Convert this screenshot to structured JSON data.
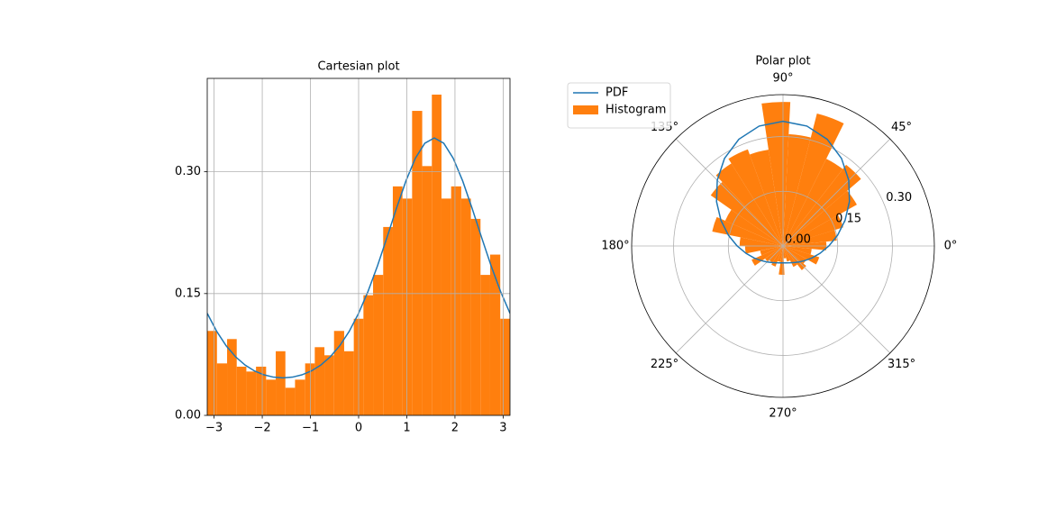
{
  "chart_data": [
    {
      "type": "histogram",
      "title": "Cartesian plot",
      "bins": [
        -3.14,
        -2.94,
        -2.73,
        -2.53,
        -2.33,
        -2.13,
        -1.92,
        -1.72,
        -1.52,
        -1.32,
        -1.11,
        -0.91,
        -0.71,
        -0.51,
        -0.3,
        -0.1,
        0.1,
        0.3,
        0.51,
        0.71,
        0.91,
        1.11,
        1.32,
        1.52,
        1.72,
        1.92,
        2.13,
        2.33,
        2.53,
        2.73,
        2.94,
        3.14
      ],
      "values": [
        0.104,
        0.064,
        0.094,
        0.06,
        0.054,
        0.06,
        0.044,
        0.079,
        0.034,
        0.044,
        0.064,
        0.084,
        0.074,
        0.104,
        0.079,
        0.119,
        0.148,
        0.173,
        0.232,
        0.282,
        0.267,
        0.375,
        0.307,
        0.395,
        0.267,
        0.282,
        0.267,
        0.242,
        0.173,
        0.198,
        0.119
      ],
      "color": "#ff7f0e",
      "line": {
        "color": "#1f77b4",
        "x": [
          -3.142,
          -2.945,
          -2.749,
          -2.553,
          -2.356,
          -2.16,
          -1.963,
          -1.767,
          -1.571,
          -1.374,
          -1.178,
          -0.982,
          -0.785,
          -0.589,
          -0.393,
          -0.196,
          0,
          0.196,
          0.393,
          0.589,
          0.785,
          0.982,
          1.178,
          1.374,
          1.571,
          1.767,
          1.963,
          2.16,
          2.356,
          2.553,
          2.749,
          2.945,
          3.142
        ],
        "values": [
          0.1257,
          0.1034,
          0.0857,
          0.0721,
          0.062,
          0.0547,
          0.0499,
          0.0471,
          0.0462,
          0.0471,
          0.0499,
          0.0547,
          0.062,
          0.0721,
          0.0857,
          0.1034,
          0.1257,
          0.1528,
          0.1843,
          0.2191,
          0.2549,
          0.2887,
          0.3167,
          0.3352,
          0.3417,
          0.3352,
          0.3167,
          0.2887,
          0.2549,
          0.2191,
          0.1843,
          0.1528,
          0.1257
        ]
      },
      "xlim": [
        -3.142,
        3.142
      ],
      "xticks": [
        {
          "value": -3,
          "label": "−3"
        },
        {
          "value": -2,
          "label": "−2"
        },
        {
          "value": -1,
          "label": "−1"
        },
        0,
        1,
        2,
        3
      ],
      "ylim": [
        0,
        0.415
      ],
      "yticks": [
        {
          "value": 0,
          "label": "0.00"
        },
        0.15,
        {
          "value": 0.3,
          "label": "0.30"
        }
      ],
      "grid": true
    },
    {
      "type": "polar",
      "title": "Polar plot",
      "series": [
        {
          "name": "PDF",
          "color": "#1f77b4",
          "x": [
            -3.142,
            -2.945,
            -2.749,
            -2.553,
            -2.356,
            -2.16,
            -1.963,
            -1.767,
            -1.571,
            -1.374,
            -1.178,
            -0.982,
            -0.785,
            -0.589,
            -0.393,
            -0.196,
            0,
            0.196,
            0.393,
            0.589,
            0.785,
            0.982,
            1.178,
            1.374,
            1.571,
            1.767,
            1.963,
            2.16,
            2.356,
            2.553,
            2.749,
            2.945,
            3.142
          ],
          "values": [
            0.1257,
            0.1034,
            0.0857,
            0.0721,
            0.062,
            0.0547,
            0.0499,
            0.0471,
            0.0462,
            0.0471,
            0.0499,
            0.0547,
            0.062,
            0.0721,
            0.0857,
            0.1034,
            0.1257,
            0.1528,
            0.1843,
            0.2191,
            0.2549,
            0.2887,
            0.3167,
            0.3352,
            0.3417,
            0.3352,
            0.3167,
            0.2887,
            0.2549,
            0.2191,
            0.1843,
            0.1528,
            0.1257
          ]
        },
        {
          "name": "Histogram",
          "color": "#ff7f0e",
          "bins": [
            -3.14,
            -2.94,
            -2.73,
            -2.53,
            -2.33,
            -2.13,
            -1.92,
            -1.72,
            -1.52,
            -1.32,
            -1.11,
            -0.91,
            -0.71,
            -0.51,
            -0.3,
            -0.1,
            0.1,
            0.3,
            0.51,
            0.71,
            0.91,
            1.11,
            1.32,
            1.52,
            1.72,
            1.92,
            2.13,
            2.33,
            2.53,
            2.73,
            2.94,
            3.14
          ],
          "values": [
            0.104,
            0.064,
            0.094,
            0.06,
            0.054,
            0.06,
            0.044,
            0.079,
            0.034,
            0.044,
            0.064,
            0.084,
            0.074,
            0.104,
            0.079,
            0.119,
            0.148,
            0.173,
            0.232,
            0.282,
            0.267,
            0.375,
            0.307,
            0.395,
            0.267,
            0.282,
            0.267,
            0.242,
            0.173,
            0.198,
            0.119
          ]
        }
      ],
      "rlim": [
        0,
        0.415
      ],
      "rticks": [
        {
          "value": 0,
          "label": "0.00"
        },
        0.15,
        {
          "value": 0.3,
          "label": "0.30"
        }
      ],
      "thetaticks": [
        {
          "value": 0,
          "label": "0°"
        },
        {
          "value": 45,
          "label": "45°"
        },
        {
          "value": 90,
          "label": "90°"
        },
        {
          "value": 135,
          "label": "135°"
        },
        {
          "value": 180,
          "label": "180°"
        },
        {
          "value": 225,
          "label": "225°"
        },
        {
          "value": 270,
          "label": "270°"
        },
        {
          "value": 315,
          "label": "315°"
        }
      ],
      "grid": true,
      "legend": "upper-left"
    }
  ]
}
